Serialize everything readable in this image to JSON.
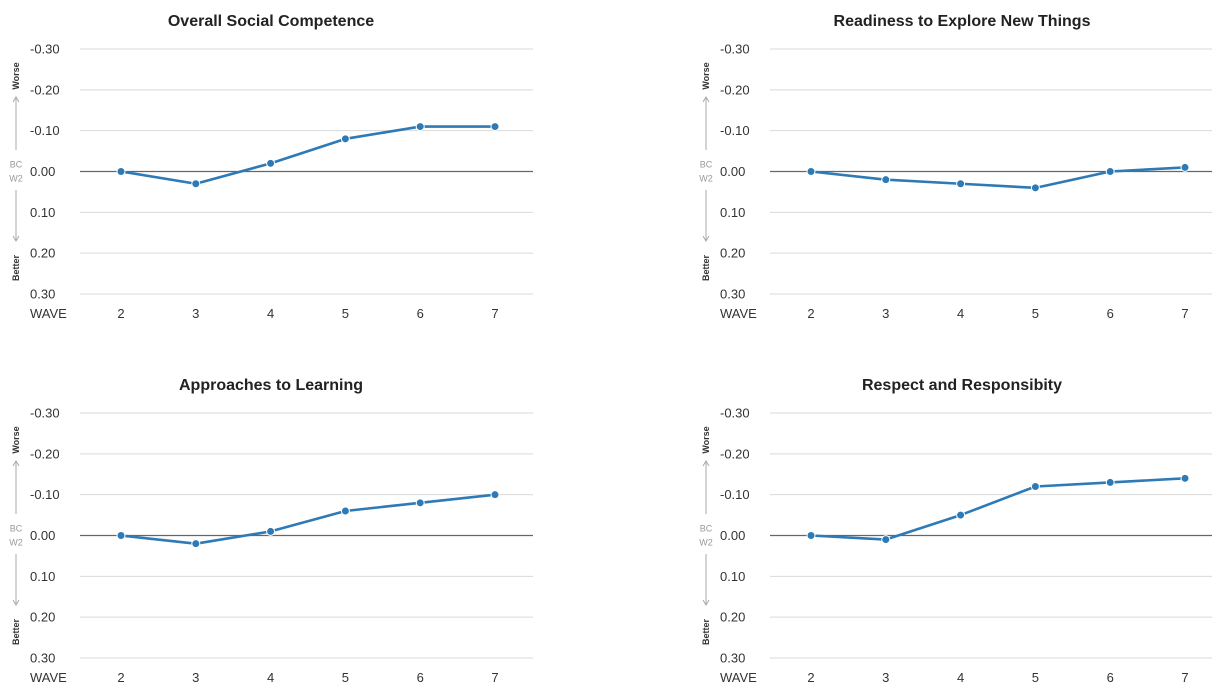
{
  "colors": {
    "line": "#2e7ab6",
    "grid": "#d9d9d9",
    "zero": "#666666",
    "arrow": "#aaaaaa"
  },
  "axis_text": {
    "worse": "Worse",
    "better": "Better",
    "baseline_line1": "BC",
    "baseline_line2": "W2",
    "x_prefix": "WAVE"
  },
  "chart_data": [
    {
      "type": "line",
      "title": "Overall Social Competence",
      "x": [
        2,
        3,
        4,
        5,
        6,
        7
      ],
      "values": [
        0.0,
        0.03,
        -0.02,
        -0.08,
        -0.11,
        -0.11
      ],
      "y_ticks": [
        "-0.30",
        "-0.20",
        "-0.10",
        "0.00",
        "0.10",
        "0.20",
        "0.30"
      ],
      "ylim": [
        -0.3,
        0.3
      ],
      "y_inverted": true,
      "grid": true
    },
    {
      "type": "line",
      "title": "Readiness to Explore New Things",
      "x": [
        2,
        3,
        4,
        5,
        6,
        7
      ],
      "values": [
        0.0,
        0.02,
        0.03,
        0.04,
        0.0,
        -0.01
      ],
      "y_ticks": [
        "-0.30",
        "-0.20",
        "-0.10",
        "0.00",
        "0.10",
        "0.20",
        "0.30"
      ],
      "ylim": [
        -0.3,
        0.3
      ],
      "y_inverted": true,
      "grid": true
    },
    {
      "type": "line",
      "title": "Approaches to Learning",
      "x": [
        2,
        3,
        4,
        5,
        6,
        7
      ],
      "values": [
        0.0,
        0.02,
        -0.01,
        -0.06,
        -0.08,
        -0.1
      ],
      "y_ticks": [
        "-0.30",
        "-0.20",
        "-0.10",
        "0.00",
        "0.10",
        "0.20",
        "0.30"
      ],
      "ylim": [
        -0.3,
        0.3
      ],
      "y_inverted": true,
      "grid": true
    },
    {
      "type": "line",
      "title": "Respect and Responsibity",
      "x": [
        2,
        3,
        4,
        5,
        6,
        7
      ],
      "values": [
        0.0,
        0.01,
        -0.05,
        -0.12,
        -0.13,
        -0.14
      ],
      "y_ticks": [
        "-0.30",
        "-0.20",
        "-0.10",
        "0.00",
        "0.10",
        "0.20",
        "0.30"
      ],
      "ylim": [
        -0.3,
        0.3
      ],
      "y_inverted": true,
      "grid": true
    }
  ]
}
